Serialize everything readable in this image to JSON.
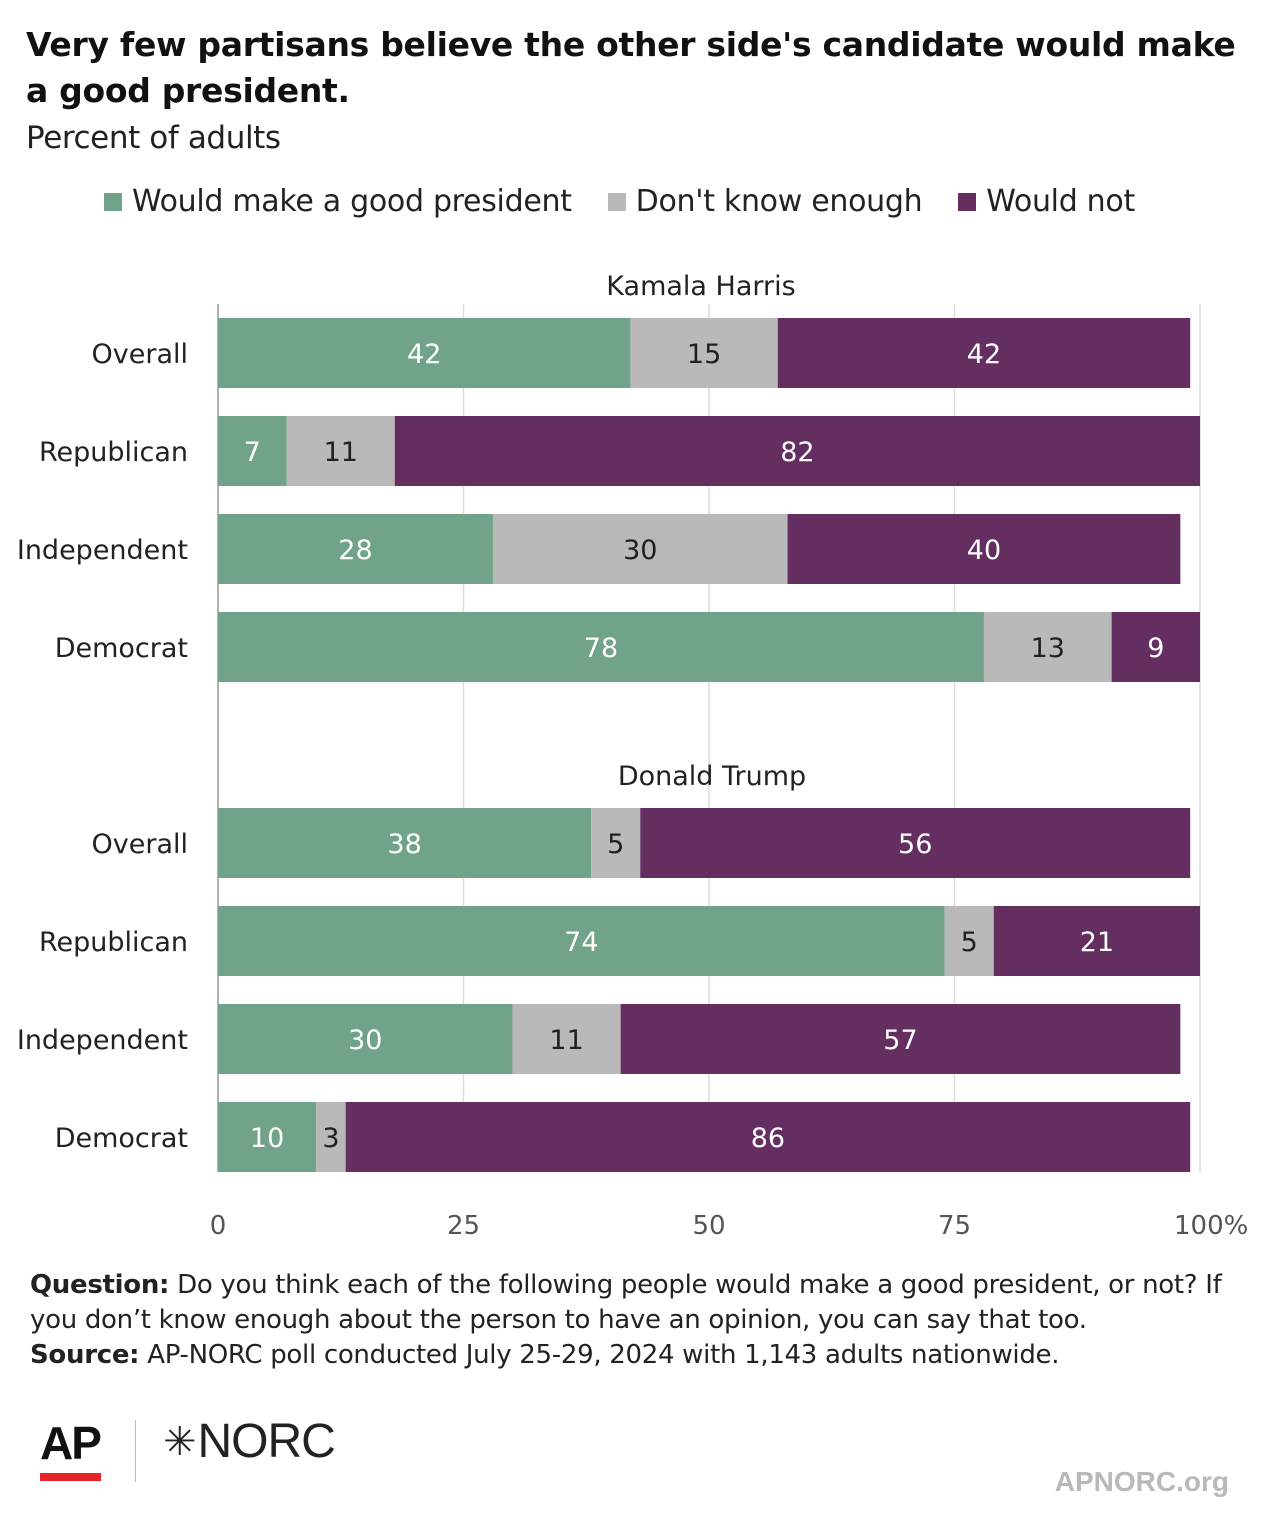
{
  "chart_data": {
    "type": "bar",
    "orientation": "horizontal",
    "stacked": true,
    "title": "Very few partisans believe the other side's candidate would make a good president.",
    "subtitle": "Percent of adults",
    "legend": {
      "placement": "top",
      "entries": [
        {
          "name": "Would make a good president",
          "color": "#70a389"
        },
        {
          "name": "Don't know enough",
          "color": "#b9b9b9"
        },
        {
          "name": "Would not",
          "color": "#652e61"
        }
      ]
    },
    "panels": [
      {
        "title": "Kamala Harris",
        "categories": [
          "Overall",
          "Republican",
          "Independent",
          "Democrat"
        ],
        "series": [
          {
            "name": "Would make a good president",
            "values": [
              42,
              7,
              28,
              78
            ]
          },
          {
            "name": "Don't know enough",
            "values": [
              15,
              11,
              30,
              13
            ]
          },
          {
            "name": "Would not",
            "values": [
              42,
              82,
              40,
              9
            ]
          }
        ]
      },
      {
        "title": "Donald Trump",
        "categories": [
          "Overall",
          "Republican",
          "Independent",
          "Democrat"
        ],
        "series": [
          {
            "name": "Would make a good president",
            "values": [
              38,
              74,
              30,
              10
            ]
          },
          {
            "name": "Don't know enough",
            "values": [
              5,
              5,
              11,
              3
            ]
          },
          {
            "name": "Would not",
            "values": [
              56,
              21,
              57,
              86
            ]
          }
        ]
      }
    ],
    "xlim": [
      0,
      100
    ],
    "xticks": [
      "0",
      "25",
      "50",
      "75",
      "100%"
    ],
    "grid": true,
    "label_colors": [
      "#ffffff",
      "#1f1f1f",
      "#ffffff"
    ]
  },
  "footer": {
    "question_label": "Question:",
    "question_text": " Do you think each of the following people would make a good president, or not?  If you don’t know enough about the person to have an opinion, you can say that too.",
    "source_label": "Source:",
    "source_text": " AP-NORC poll conducted July 25-29, 2024 with 1,143 adults nationwide."
  },
  "branding": {
    "ap_logo": "AP",
    "norc_logo": "NORC",
    "norc_mark_icon": "asterisk-icon",
    "ap_accent_color": "#e4262a",
    "site": "APNORC.org"
  }
}
